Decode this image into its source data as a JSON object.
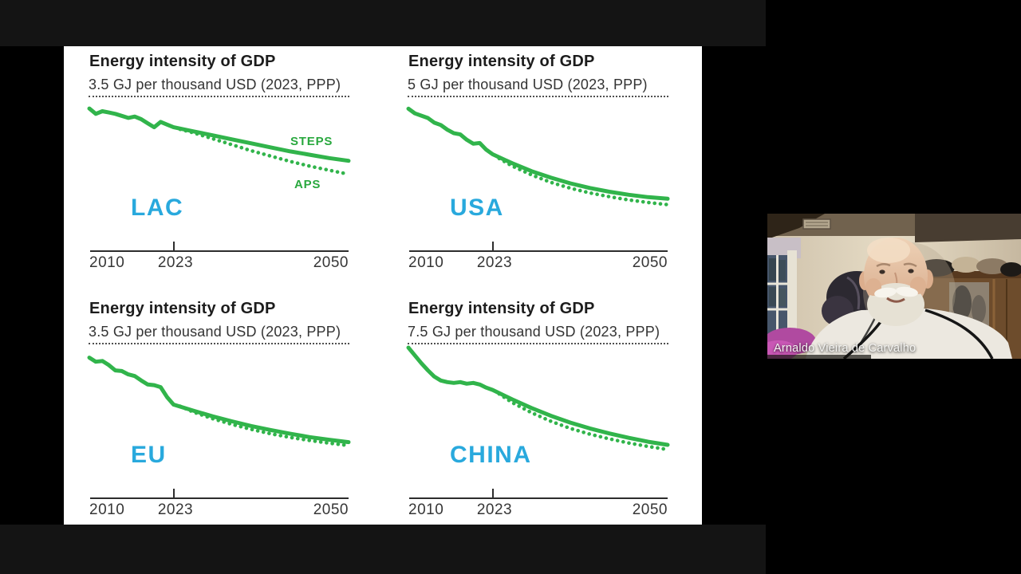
{
  "video": {
    "participant_name": "Arnaldo Vieira de Carvalho"
  },
  "colors": {
    "line_green": "#31b44b",
    "label_green": "#29a83e",
    "region_cyan": "#29a9dd",
    "slide_bg": "#ffffff",
    "band_dark": "#141414",
    "axis_dark": "#2d2d2d"
  },
  "slide": {
    "charts": [
      {
        "title": "Energy intensity of GDP",
        "subtitle": "3.5 GJ per thousand USD (2023, PPP)",
        "region": "LAC",
        "x_ticks": [
          "2010",
          "2023",
          "2050"
        ],
        "scenario_labels": {
          "steps": "STEPS",
          "aps": "APS"
        },
        "chart_data": {
          "type": "line",
          "xlabel": "",
          "ylabel": "GJ per thousand USD (2023, PPP)",
          "xlim": [
            2010,
            2050
          ],
          "ylim": [
            1.7,
            3.9
          ],
          "series": [
            {
              "name": "STEPS",
              "style": "solid",
              "x": [
                2010,
                2011,
                2012,
                2013,
                2014,
                2015,
                2016,
                2017,
                2018,
                2019,
                2020,
                2021,
                2022,
                2023,
                2026,
                2029,
                2032,
                2035,
                2038,
                2041,
                2044,
                2047,
                2050
              ],
              "values": [
                3.78,
                3.7,
                3.74,
                3.72,
                3.7,
                3.67,
                3.64,
                3.66,
                3.62,
                3.56,
                3.5,
                3.58,
                3.54,
                3.5,
                3.44,
                3.38,
                3.32,
                3.26,
                3.2,
                3.14,
                3.09,
                3.04,
                3.0
              ]
            },
            {
              "name": "APS",
              "style": "dotted",
              "x": [
                2024,
                2026,
                2029,
                2032,
                2035,
                2038,
                2041,
                2044,
                2047,
                2050
              ],
              "values": [
                3.47,
                3.42,
                3.33,
                3.24,
                3.15,
                3.07,
                2.99,
                2.92,
                2.86,
                2.8
              ]
            }
          ]
        }
      },
      {
        "title": "Energy intensity of GDP",
        "subtitle": "5 GJ per thousand USD (2023, PPP)",
        "region": "USA",
        "x_ticks": [
          "2010",
          "2023",
          "2050"
        ],
        "chart_data": {
          "type": "line",
          "xlabel": "",
          "ylabel": "GJ per thousand USD (2023, PPP)",
          "xlim": [
            2010,
            2050
          ],
          "ylim": [
            1.0,
            7.3
          ],
          "series": [
            {
              "name": "STEPS",
              "style": "solid",
              "x": [
                2010,
                2011,
                2012,
                2013,
                2014,
                2015,
                2016,
                2017,
                2018,
                2019,
                2020,
                2021,
                2022,
                2023,
                2026,
                2029,
                2032,
                2035,
                2038,
                2041,
                2044,
                2047,
                2050
              ],
              "values": [
                6.95,
                6.75,
                6.65,
                6.55,
                6.35,
                6.25,
                6.05,
                5.9,
                5.85,
                5.62,
                5.45,
                5.48,
                5.2,
                5.0,
                4.62,
                4.28,
                4.0,
                3.76,
                3.56,
                3.4,
                3.27,
                3.17,
                3.1
              ]
            },
            {
              "name": "APS",
              "style": "dotted",
              "x": [
                2024,
                2026,
                2029,
                2032,
                2035,
                2038,
                2041,
                2044,
                2047,
                2050
              ],
              "values": [
                4.82,
                4.5,
                4.12,
                3.8,
                3.55,
                3.35,
                3.19,
                3.05,
                2.94,
                2.85
              ]
            }
          ]
        }
      },
      {
        "title": "Energy intensity of GDP",
        "subtitle": "3.5 GJ per thousand USD (2023, PPP)",
        "region": "EU",
        "x_ticks": [
          "2010",
          "2023",
          "2050"
        ],
        "chart_data": {
          "type": "line",
          "xlabel": "",
          "ylabel": "GJ per thousand USD (2023, PPP)",
          "xlim": [
            2010,
            2050
          ],
          "ylim": [
            0.8,
            5.2
          ],
          "series": [
            {
              "name": "STEPS",
              "style": "solid",
              "x": [
                2010,
                2011,
                2012,
                2013,
                2014,
                2015,
                2016,
                2017,
                2018,
                2019,
                2020,
                2021,
                2022,
                2023,
                2026,
                2029,
                2032,
                2035,
                2038,
                2041,
                2044,
                2047,
                2050
              ],
              "values": [
                4.9,
                4.78,
                4.8,
                4.68,
                4.52,
                4.5,
                4.4,
                4.35,
                4.22,
                4.1,
                4.08,
                4.02,
                3.72,
                3.5,
                3.32,
                3.15,
                3.0,
                2.86,
                2.74,
                2.63,
                2.53,
                2.45,
                2.38
              ]
            },
            {
              "name": "APS",
              "style": "dotted",
              "x": [
                2024,
                2026,
                2029,
                2032,
                2035,
                2038,
                2041,
                2044,
                2047,
                2050
              ],
              "values": [
                3.45,
                3.28,
                3.08,
                2.91,
                2.76,
                2.63,
                2.52,
                2.43,
                2.35,
                2.28
              ]
            }
          ]
        }
      },
      {
        "title": "Energy intensity of GDP",
        "subtitle": "7.5 GJ per thousand USD (2023, PPP)",
        "region": "CHINA",
        "x_ticks": [
          "2010",
          "2023",
          "2050"
        ],
        "chart_data": {
          "type": "line",
          "xlabel": "",
          "ylabel": "GJ per thousand USD (2023, PPP)",
          "xlim": [
            2010,
            2050
          ],
          "ylim": [
            0.8,
            10.2
          ],
          "series": [
            {
              "name": "STEPS",
              "style": "solid",
              "x": [
                2010,
                2011,
                2012,
                2013,
                2014,
                2015,
                2016,
                2017,
                2018,
                2019,
                2020,
                2021,
                2022,
                2023,
                2026,
                2029,
                2032,
                2035,
                2038,
                2041,
                2044,
                2047,
                2050
              ],
              "values": [
                10.2,
                9.7,
                9.2,
                8.75,
                8.35,
                8.1,
                8.0,
                7.95,
                8.0,
                7.9,
                7.95,
                7.85,
                7.65,
                7.5,
                6.9,
                6.35,
                5.85,
                5.42,
                5.05,
                4.73,
                4.45,
                4.2,
                4.0
              ]
            },
            {
              "name": "APS",
              "style": "dotted",
              "x": [
                2024,
                2026,
                2029,
                2032,
                2035,
                2038,
                2041,
                2044,
                2047,
                2050
              ],
              "values": [
                7.25,
                6.7,
                6.05,
                5.5,
                5.05,
                4.68,
                4.38,
                4.12,
                3.9,
                3.7
              ]
            }
          ]
        }
      }
    ]
  }
}
